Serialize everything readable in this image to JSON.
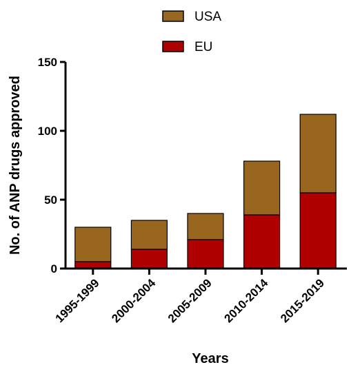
{
  "chart_data": {
    "type": "bar",
    "stacked": true,
    "categories": [
      "1995-1999",
      "2000-2004",
      "2005-2009",
      "2010-2014",
      "2015-2019"
    ],
    "series": [
      {
        "name": "EU",
        "values": [
          5,
          14,
          21,
          39,
          55
        ],
        "color": "#b00000"
      },
      {
        "name": "USA",
        "values": [
          25,
          21,
          19,
          39,
          57
        ],
        "color": "#99661f"
      }
    ],
    "totals": [
      30,
      35,
      40,
      78,
      112
    ],
    "xlabel": "Years",
    "ylabel": "No. of ANP drugs approved",
    "ylim": [
      0,
      150
    ],
    "yticks": [
      "0",
      "50",
      "100",
      "150"
    ],
    "legend_position": "top-center",
    "legend_order": [
      "USA",
      "EU"
    ],
    "grid": false
  }
}
